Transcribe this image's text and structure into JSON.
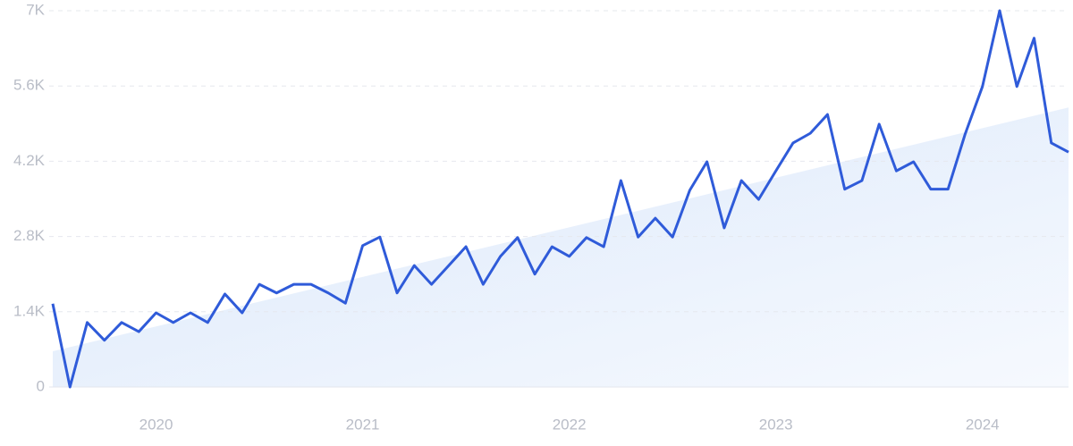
{
  "chart_data": {
    "type": "line",
    "categories": [
      null,
      null,
      null,
      null,
      null,
      null,
      "2020",
      null,
      null,
      null,
      null,
      null,
      null,
      null,
      null,
      null,
      null,
      null,
      "2021",
      null,
      null,
      null,
      null,
      null,
      null,
      null,
      null,
      null,
      null,
      null,
      "2022",
      null,
      null,
      null,
      null,
      null,
      null,
      null,
      null,
      null,
      null,
      null,
      "2023",
      null,
      null,
      null,
      null,
      null,
      null,
      null,
      null,
      null,
      null,
      null,
      "2024",
      null,
      null,
      null,
      null,
      null
    ],
    "series": [
      {
        "color": "#2f5bd9",
        "values": [
          1550,
          0,
          1200,
          870,
          1200,
          1030,
          1380,
          1200,
          1380,
          1200,
          1730,
          1380,
          1910,
          1750,
          1910,
          1910,
          1750,
          1560,
          2630,
          2790,
          1750,
          2260,
          1910,
          2260,
          2610,
          1910,
          2430,
          2780,
          2100,
          2610,
          2430,
          2780,
          2610,
          3840,
          2790,
          3140,
          2790,
          3660,
          4190,
          2960,
          3840,
          3490,
          4020,
          4540,
          4720,
          5070,
          3680,
          3840,
          4890,
          4020,
          4190,
          3680,
          3680,
          4710,
          5590,
          7000,
          5590,
          6490,
          4540,
          4370
        ]
      }
    ],
    "trend": {
      "color": "#dbe8fb",
      "values": [
        665,
        5200
      ]
    },
    "ylim": [
      0,
      7000
    ],
    "yticks": [
      {
        "value": 0,
        "label": "0"
      },
      {
        "value": 1400,
        "label": "1.4K"
      },
      {
        "value": 2800,
        "label": "2.8K"
      },
      {
        "value": 4200,
        "label": "4.2K"
      },
      {
        "value": 5600,
        "label": "5.6K"
      },
      {
        "value": 7000,
        "label": "7K"
      }
    ],
    "grid": true
  }
}
